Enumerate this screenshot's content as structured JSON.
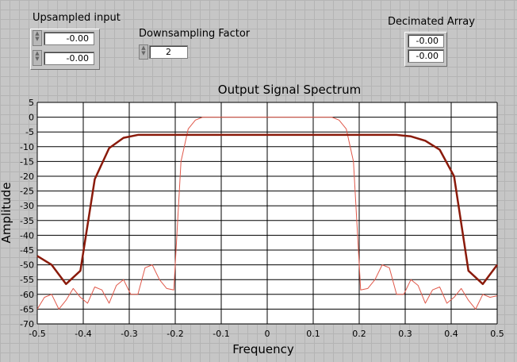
{
  "controls": {
    "upsampled_input": {
      "label": "Upsampled input",
      "values": [
        "-0.00",
        "-0.00"
      ]
    },
    "downsampling_factor": {
      "label": "Downsampling Factor",
      "value": "2"
    },
    "decimated_array": {
      "label": "Decimated Array",
      "values": [
        "-0.00",
        "-0.00"
      ]
    }
  },
  "chart_data": {
    "type": "line",
    "title": "Output Signal Spectrum",
    "x_label": "Frequency",
    "y_label": "Amplitude",
    "xlim": [
      -0.5,
      0.5
    ],
    "ylim": [
      -70,
      5
    ],
    "xticks": [
      -0.5,
      -0.4,
      -0.3,
      -0.2,
      -0.1,
      0,
      0.1,
      0.2,
      0.3,
      0.4,
      0.5
    ],
    "yticks": [
      5,
      0,
      -5,
      -10,
      -15,
      -20,
      -25,
      -30,
      -35,
      -40,
      -45,
      -50,
      -55,
      -60,
      -65,
      -70
    ],
    "grid": true,
    "series": [
      {
        "color": "#8a1a0a",
        "x": [
          -0.5,
          -0.46875,
          -0.4375,
          -0.40625,
          -0.375,
          -0.34375,
          -0.3125,
          -0.28125,
          0.28125,
          0.3125,
          0.34375,
          0.375,
          0.40625,
          0.4375,
          0.46875,
          0.5
        ],
        "values": [
          -47,
          -50,
          -56.5,
          -52,
          -21,
          -10.5,
          -7,
          -6,
          -6,
          -6.5,
          -8,
          -11,
          -20,
          -52,
          -56.5,
          -50
        ]
      },
      {
        "color": "#e0584a",
        "x": [
          -0.5,
          -0.484375,
          -0.46875,
          -0.453125,
          -0.4375,
          -0.421875,
          -0.40625,
          -0.390625,
          -0.375,
          -0.359375,
          -0.34375,
          -0.328125,
          -0.3125,
          -0.296875,
          -0.28125,
          -0.265625,
          -0.25,
          -0.234375,
          -0.21875,
          -0.203125,
          -0.1875,
          -0.171875,
          -0.15625,
          -0.140625,
          -0.125,
          -0.109375,
          -0.09375,
          -0.078125,
          -0.0625,
          -0.046875,
          -0.03125,
          -0.015625,
          0,
          0.015625,
          0.03125,
          0.046875,
          0.0625,
          0.078125,
          0.09375,
          0.109375,
          0.125,
          0.140625,
          0.15625,
          0.171875,
          0.1875,
          0.203125,
          0.21875,
          0.234375,
          0.25,
          0.265625,
          0.28125,
          0.296875,
          0.3125,
          0.328125,
          0.34375,
          0.359375,
          0.375,
          0.390625,
          0.40625,
          0.421875,
          0.4375,
          0.453125,
          0.46875,
          0.484375,
          0.5
        ],
        "values": [
          -65,
          -61,
          -60,
          -65,
          -62,
          -58,
          -61,
          -63,
          -57.5,
          -58.5,
          -63,
          -57,
          -55,
          -60,
          -60,
          -51,
          -50,
          -55,
          -58,
          -58.5,
          -15,
          -4,
          -1,
          0,
          0,
          0,
          0,
          0,
          0,
          0,
          0,
          0,
          0,
          0,
          0,
          0,
          0,
          0,
          0,
          0,
          0,
          0,
          -1,
          -4,
          -15,
          -58.5,
          -58,
          -55,
          -50,
          -51,
          -60,
          -60,
          -55,
          -57,
          -63,
          -58.5,
          -57.5,
          -63,
          -61,
          -58,
          -62,
          -65,
          -60,
          -61,
          -60.5
        ]
      }
    ]
  }
}
